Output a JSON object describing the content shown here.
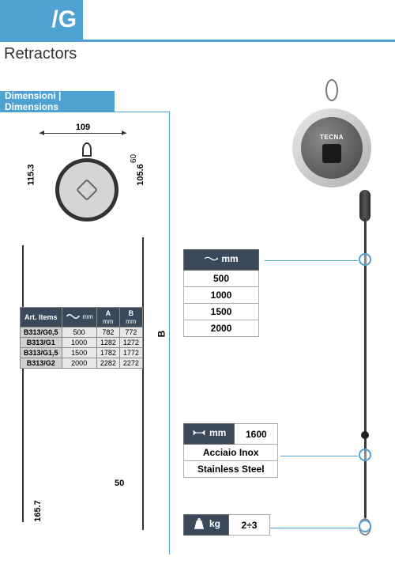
{
  "header": {
    "title": "/G",
    "subtitle": "Retractors"
  },
  "dimHeader": "Dimensioni | Dimensions",
  "dimensions": {
    "width": "109",
    "height": "115.3",
    "sixty": "60",
    "height2": "105.6",
    "B": "B",
    "fifty": "50",
    "d1657": "165.7"
  },
  "dimTable": {
    "headers": {
      "items": "Art.\nItems",
      "cable_unit": "mm",
      "A": "A",
      "A_unit": "mm",
      "B": "B",
      "B_unit": "mm"
    },
    "rows": [
      {
        "item": "B313/G0,5",
        "cable": "500",
        "a": "782",
        "b": "772"
      },
      {
        "item": "B313/G1",
        "cable": "1000",
        "a": "1282",
        "b": "1272"
      },
      {
        "item": "B313/G1,5",
        "cable": "1500",
        "a": "1782",
        "b": "1772"
      },
      {
        "item": "B313/G2",
        "cable": "2000",
        "a": "2282",
        "b": "2272"
      }
    ]
  },
  "product": {
    "brand": "TECNA"
  },
  "specCable": {
    "unit": "mm",
    "values": [
      "500",
      "1000",
      "1500",
      "2000"
    ]
  },
  "specStroke": {
    "unit": "mm",
    "value": "1600",
    "material_it": "Acciaio Inox",
    "material_en": "Stainless Steel"
  },
  "specCapacity": {
    "unit": "kg",
    "value": "2÷3"
  },
  "colors": {
    "accent": "#4fa1d1",
    "tableHeader": "#3a4a5a",
    "border": "#aaaaaa"
  }
}
